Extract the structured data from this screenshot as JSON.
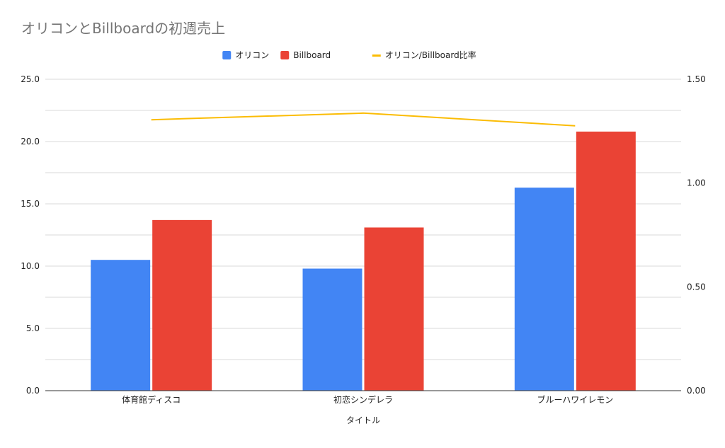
{
  "chart_data": {
    "type": "bar",
    "title": "オリコンとBillboardの初週売上",
    "xlabel": "タイトル",
    "ylabel": "",
    "y2label": "",
    "categories": [
      "体育館ディスコ",
      "初恋シンデレラ",
      "ブルーハワイレモン"
    ],
    "series": [
      {
        "name": "オリコン",
        "type": "bar",
        "axis": "left",
        "color": "#4285F4",
        "values": [
          10.5,
          9.8,
          16.3
        ]
      },
      {
        "name": "Billboard",
        "type": "bar",
        "axis": "left",
        "color": "#EA4335",
        "values": [
          13.7,
          13.1,
          20.8
        ]
      },
      {
        "name": "オリコン/Billboard比率",
        "type": "line",
        "axis": "right",
        "color": "#FBBC04",
        "values": [
          1.305,
          1.337,
          1.276
        ]
      }
    ],
    "ylim": [
      0,
      25
    ],
    "yticks": [
      "0.0",
      "5.0",
      "10.0",
      "15.0",
      "20.0",
      "25.0"
    ],
    "y2lim": [
      0,
      1.5
    ],
    "y2ticks": [
      "0.00",
      "0.50",
      "1.00",
      "1.50"
    ],
    "grid": true,
    "legend_position": "top-center"
  }
}
